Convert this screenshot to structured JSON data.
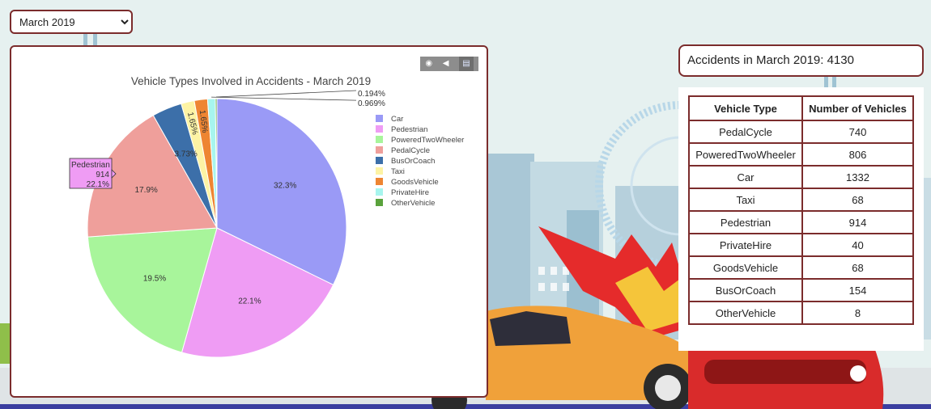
{
  "month_select": {
    "value": "March 2019",
    "options": [
      "March 2019"
    ]
  },
  "modebar": {
    "icons": [
      "camera-icon",
      "pan-icon",
      "bar-chart-icon"
    ]
  },
  "summary": {
    "text": "Accidents in March 2019: 4130"
  },
  "table": {
    "headers": [
      "Vehicle Type",
      "Number of Vehicles"
    ],
    "rows": [
      [
        "PedalCycle",
        "740"
      ],
      [
        "PoweredTwoWheeler",
        "806"
      ],
      [
        "Car",
        "1332"
      ],
      [
        "Taxi",
        "68"
      ],
      [
        "Pedestrian",
        "914"
      ],
      [
        "PrivateHire",
        "40"
      ],
      [
        "GoodsVehicle",
        "68"
      ],
      [
        "BusOrCoach",
        "154"
      ],
      [
        "OtherVehicle",
        "8"
      ]
    ]
  },
  "chart_data": {
    "type": "pie",
    "title": "Vehicle Types Involved in Accidents - March 2019",
    "categories": [
      "Car",
      "Pedestrian",
      "PoweredTwoWheeler",
      "PedalCycle",
      "BusOrCoach",
      "Taxi",
      "GoodsVehicle",
      "PrivateHire",
      "OtherVehicle"
    ],
    "values": [
      1332,
      914,
      806,
      740,
      154,
      68,
      68,
      40,
      8
    ],
    "labels": [
      "32.3%",
      "22.1%",
      "19.5%",
      "17.9%",
      "3.73%",
      "1.65%",
      "1.65%",
      "0.969%",
      "0.194%"
    ],
    "colors": [
      "#9a9af6",
      "#ef9cf4",
      "#a8f59b",
      "#ef9f9b",
      "#3c6fa9",
      "#fdf3a4",
      "#ee8532",
      "#a7f5ee",
      "#5aa23c"
    ],
    "legend_position": "right",
    "hover": {
      "name": "Pedestrian",
      "value": "914",
      "percent": "22.1%"
    }
  }
}
